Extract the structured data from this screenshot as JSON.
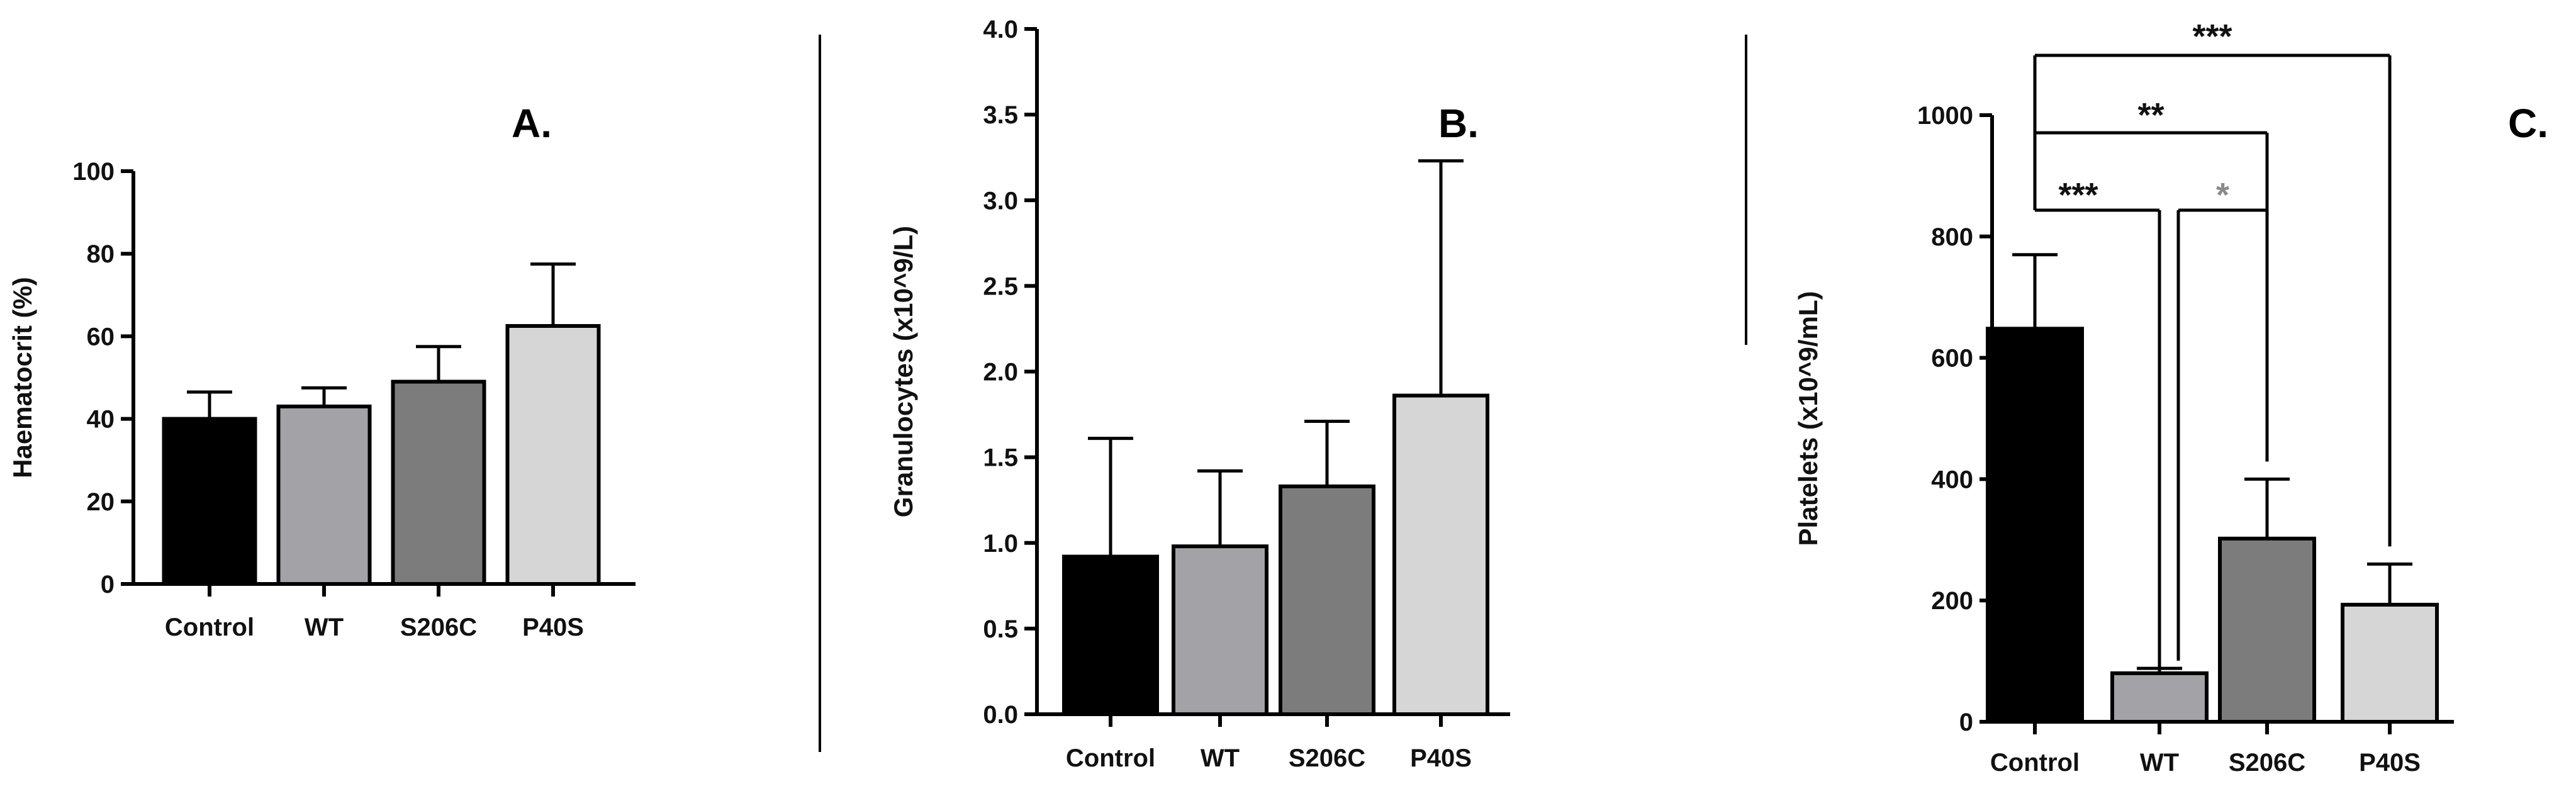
{
  "colors": {
    "axis": "#000000",
    "bar_fills": [
      "#000000",
      "#a3a2a7",
      "#7c7c7c",
      "#d6d6d6"
    ],
    "significance": "#111111",
    "significance_faint": "#8a8a8a",
    "divider": "#000000"
  },
  "chart_data": [
    {
      "type": "bar",
      "panel_label": "A.",
      "title": "",
      "xlabel": "",
      "ylabel": "Haematocrit (%)",
      "categories": [
        "Control",
        "WT",
        "S206C",
        "P40S"
      ],
      "values": [
        40,
        43,
        49,
        62.5
      ],
      "error_upper": [
        46.5,
        47.5,
        57.5,
        77.5
      ],
      "ylim": [
        0,
        100
      ],
      "yticks": [
        0,
        20,
        40,
        60,
        80,
        100
      ],
      "ytick_labels": [
        "0",
        "20",
        "40",
        "60",
        "80",
        "100"
      ]
    },
    {
      "type": "bar",
      "panel_label": "B.",
      "title": "",
      "xlabel": "",
      "ylabel": "Granulocytes (x10^9/L)",
      "categories": [
        "Control",
        "WT",
        "S206C",
        "P40S"
      ],
      "values": [
        0.92,
        0.98,
        1.33,
        1.86
      ],
      "error_upper": [
        1.61,
        1.42,
        1.71,
        3.23
      ],
      "ylim": [
        0,
        4.0
      ],
      "yticks": [
        0,
        0.5,
        1.0,
        1.5,
        2.0,
        2.5,
        3.0,
        3.5,
        4.0
      ],
      "ytick_labels": [
        "0.0",
        "0.5",
        "1.0",
        "1.5",
        "2.0",
        "2.5",
        "3.0",
        "3.5",
        "4.0"
      ]
    },
    {
      "type": "bar",
      "panel_label": "C.",
      "title": "",
      "xlabel": "",
      "ylabel": "Platelets (x10^9/mL)",
      "categories": [
        "Control",
        "WT",
        "S206C",
        "P40S"
      ],
      "values": [
        648,
        80,
        302,
        193
      ],
      "error_upper": [
        770,
        88,
        400,
        260
      ],
      "ylim": [
        0,
        1000
      ],
      "yticks": [
        0,
        200,
        400,
        600,
        800,
        1000
      ],
      "ytick_labels": [
        "0",
        "200",
        "400",
        "600",
        "800",
        "1000"
      ],
      "significance": [
        {
          "from": "Control",
          "to": "P40S",
          "label": "***",
          "faint": false
        },
        {
          "from": "Control",
          "to": "S206C",
          "label": "**",
          "faint": false
        },
        {
          "from": "Control",
          "to": "WT",
          "label": "***",
          "faint": false
        },
        {
          "from": "WT",
          "to": "S206C",
          "label": "*",
          "faint": true
        }
      ]
    }
  ]
}
